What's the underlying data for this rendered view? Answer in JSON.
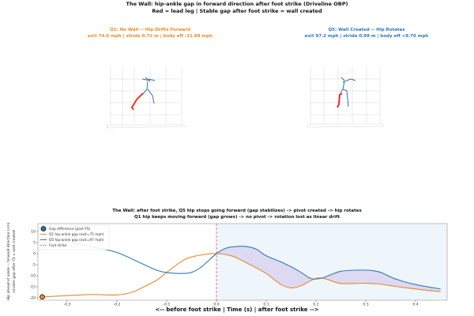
{
  "title": "The Wall: hip-ankle gap in forward direction after foot strike (Driveline OBP)",
  "subtitle": "Red = lead leg  |  Stable gap after foot strike = wall created",
  "panels": [
    {
      "title": "Q1: No Wall -- Hip Drifts Forward",
      "info": "exit 74.6 mph  |  stride 0.72 m  |  body eff -11.88 mph",
      "color": "#f08a24"
    },
    {
      "title": "Q5: Wall Created -- Hip Rotates",
      "info": "exit 97.2 mph  |  stride 0.99 m  |  body eff +9.70 mph",
      "color": "#2a7ab5"
    }
  ],
  "chart_data": {
    "type": "line",
    "title": "The Wall: after foot strike, Q5 hip stops going forward (gap stabilizes) -> pivot created -> hip rotates",
    "title2": "Q1 hip keeps moving forward (gap grows) -> no pivot -> rotation lost as linear drift",
    "xlabel": "<-- before foot strike   |   Time (s)   |   after foot strike -->",
    "ylabel": "Hip ahead of ankle -- forward direction (cm)",
    "ylabel2": "smaller gap after FS = wall created",
    "xlim": [
      -0.35,
      0.45
    ],
    "ylim": [
      -21,
      12
    ],
    "xticks": [
      -0.3,
      -0.2,
      -0.1,
      0.0,
      0.1,
      0.2,
      0.3,
      0.4
    ],
    "xtick_labels": [
      "-0.3",
      "-0.2",
      "-0.1",
      "0.0",
      "0.1",
      "0.2",
      "0.3",
      "0.4"
    ],
    "yticks": [
      10,
      5,
      0,
      -5,
      -10,
      -15,
      -20
    ],
    "ytick_labels": [
      "10",
      "5",
      "0",
      "-5",
      "-10",
      "-15",
      "-20"
    ],
    "legend": [
      "Gap difference (post-FS)",
      "Q1  hip-ankle gap  (exit=75 mph)",
      "Q5  hip-ankle gap  (exit=97 mph)",
      "Foot strike"
    ],
    "legend_position": "upper-left",
    "series": [
      {
        "name": "Q1",
        "color": "#e8892a",
        "x": [
          -0.35,
          -0.3,
          -0.25,
          -0.2,
          -0.17,
          -0.15,
          -0.12,
          -0.1,
          -0.07,
          -0.05,
          -0.02,
          0,
          0.03,
          0.05,
          0.08,
          0.1,
          0.13,
          0.15,
          0.17,
          0.2,
          0.22,
          0.25,
          0.3,
          0.33,
          0.35,
          0.4,
          0.45
        ],
        "y": [
          -19.6,
          -19,
          -18.5,
          -18.7,
          -17.5,
          -15.5,
          -12,
          -8.5,
          -3.5,
          -1.5,
          -0.3,
          0,
          -1,
          -3,
          -6.5,
          -9,
          -14,
          -15.5,
          -14.5,
          -11.2,
          -11.5,
          -13.5,
          -13.4,
          -13.8,
          -14.5,
          -16,
          -17.2
        ]
      },
      {
        "name": "Q5",
        "color": "#2f7bb6",
        "x": [
          -0.35,
          -0.3,
          -0.25,
          -0.2,
          -0.15,
          -0.12,
          -0.1,
          -0.07,
          -0.05,
          -0.03,
          0,
          0.02,
          0.04,
          0.06,
          0.08,
          0.1,
          0.13,
          0.15,
          0.17,
          0.19,
          0.21,
          0.23,
          0.25,
          0.28,
          0.31,
          0.33,
          0.36,
          0.4,
          0.45
        ],
        "y": [
          8,
          5,
          3,
          0.5,
          -4.5,
          -7.5,
          -8.6,
          -9,
          -8.5,
          -6,
          0,
          2.5,
          3.2,
          3.2,
          2,
          -1,
          -3.8,
          -6,
          -8.5,
          -11.3,
          -11.2,
          -9.5,
          -8,
          -7.5,
          -7.6,
          -8.5,
          -11.5,
          -14,
          -16
        ]
      }
    ],
    "foot_strike_x": 0
  }
}
